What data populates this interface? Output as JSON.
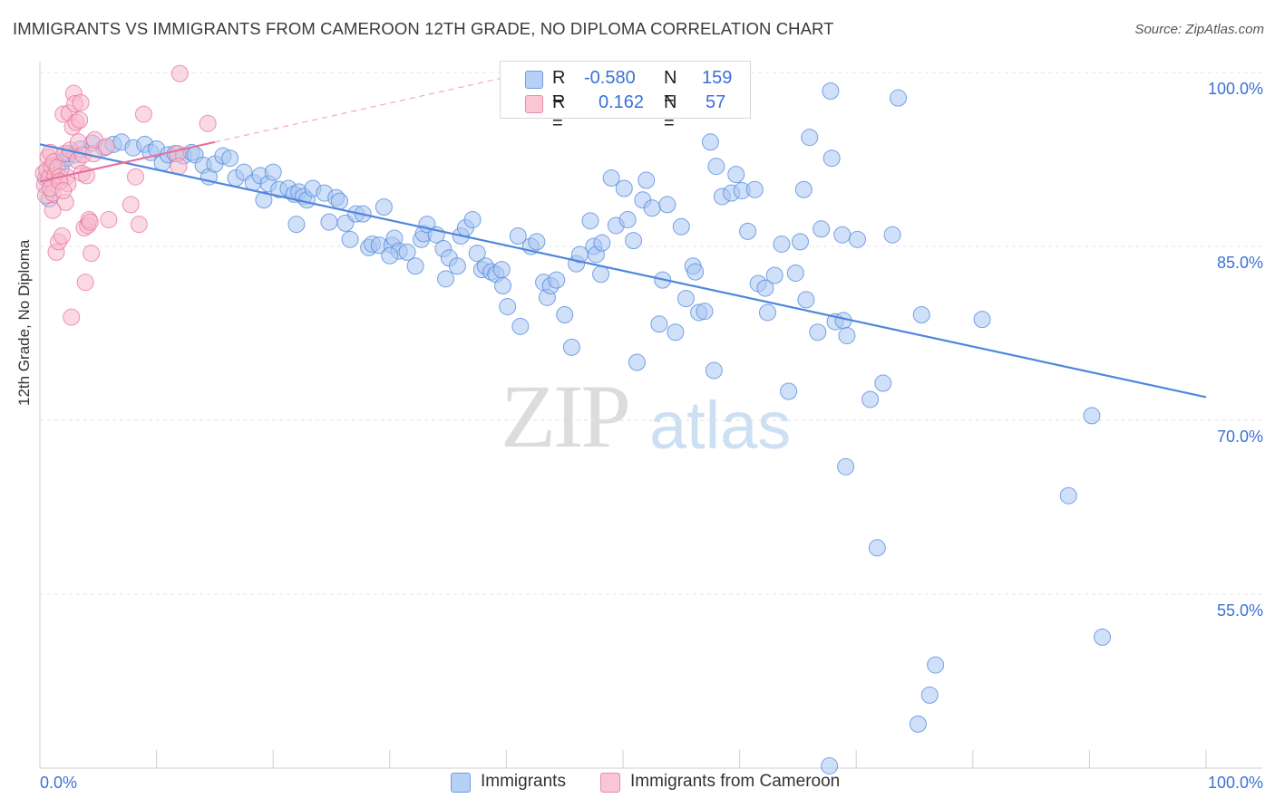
{
  "title": "IMMIGRANTS VS IMMIGRANTS FROM CAMEROON 12TH GRADE, NO DIPLOMA CORRELATION CHART",
  "source": "Source: ZipAtlas.com",
  "watermark": {
    "zip": "ZIP",
    "atlas": "atlas"
  },
  "legend_top": [
    {
      "r_label": "R =",
      "r_value": "-0.580",
      "n_label": "N =",
      "n_value": "159",
      "color": "#a9c7f3"
    },
    {
      "r_label": "R =",
      "r_value": "0.162",
      "n_label": "N =",
      "n_value": "57",
      "color": "#f7b9cc"
    }
  ],
  "legend_bottom": [
    {
      "label": "Immigrants",
      "color": "#a9c7f3"
    },
    {
      "label": "Immigrants from Cameroon",
      "color": "#f7b9cc"
    }
  ],
  "chart_data": {
    "type": "scatter",
    "title": "IMMIGRANTS VS IMMIGRANTS FROM CAMEROON 12TH GRADE, NO DIPLOMA CORRELATION CHART",
    "xlabel": "",
    "ylabel": "12th Grade, No Diploma",
    "xlim": [
      0,
      100
    ],
    "ylim": [
      38,
      101
    ],
    "x_ticks": [
      "0.0%",
      "100.0%"
    ],
    "y_ticks": [
      {
        "value": 100,
        "label": "100.0%"
      },
      {
        "value": 85,
        "label": "85.0%"
      },
      {
        "value": 70,
        "label": "70.0%"
      },
      {
        "value": 55,
        "label": "55.0%"
      }
    ],
    "grid": true,
    "legend_position": "top-center",
    "series": [
      {
        "name": "Immigrants",
        "color": "#4f87dc",
        "fill": "#a9c7f3",
        "trend": {
          "x": [
            0,
            100
          ],
          "y": [
            93.8,
            72.0
          ]
        },
        "points": [
          [
            0.5,
            90.9
          ],
          [
            0.8,
            89.1
          ],
          [
            1.2,
            92.0
          ],
          [
            1.8,
            91.7
          ],
          [
            2.3,
            92.6
          ],
          [
            2.5,
            93.0
          ],
          [
            3.0,
            92.9
          ],
          [
            3.5,
            93.4
          ],
          [
            4.5,
            93.9
          ],
          [
            5.5,
            93.5
          ],
          [
            6.3,
            93.8
          ],
          [
            7.0,
            94.0
          ],
          [
            8.0,
            93.5
          ],
          [
            9.0,
            93.8
          ],
          [
            9.5,
            93.1
          ],
          [
            10.0,
            93.4
          ],
          [
            10.5,
            92.2
          ],
          [
            11.0,
            92.9
          ],
          [
            11.6,
            93.0
          ],
          [
            12.3,
            92.8
          ],
          [
            13.0,
            93.1
          ],
          [
            13.3,
            92.9
          ],
          [
            14.0,
            92.0
          ],
          [
            14.5,
            91.0
          ],
          [
            15.0,
            92.1
          ],
          [
            15.7,
            92.8
          ],
          [
            16.3,
            92.6
          ],
          [
            16.8,
            90.9
          ],
          [
            17.5,
            91.4
          ],
          [
            18.3,
            90.5
          ],
          [
            18.9,
            91.1
          ],
          [
            19.2,
            89.0
          ],
          [
            19.6,
            90.4
          ],
          [
            20.0,
            91.4
          ],
          [
            20.5,
            89.9
          ],
          [
            21.3,
            90.0
          ],
          [
            21.8,
            89.5
          ],
          [
            22.2,
            89.7
          ],
          [
            22.6,
            89.3
          ],
          [
            22.9,
            89.0
          ],
          [
            23.4,
            90.0
          ],
          [
            24.4,
            89.6
          ],
          [
            24.8,
            87.1
          ],
          [
            25.4,
            89.2
          ],
          [
            25.7,
            88.9
          ],
          [
            26.2,
            87.0
          ],
          [
            26.6,
            85.6
          ],
          [
            27.1,
            87.8
          ],
          [
            27.7,
            87.8
          ],
          [
            28.2,
            84.9
          ],
          [
            28.5,
            85.2
          ],
          [
            29.1,
            85.1
          ],
          [
            29.5,
            88.4
          ],
          [
            30.2,
            85.1
          ],
          [
            30.4,
            85.7
          ],
          [
            30.8,
            84.6
          ],
          [
            31.5,
            84.5
          ],
          [
            32.2,
            83.3
          ],
          [
            32.7,
            85.6
          ],
          [
            32.9,
            86.1
          ],
          [
            33.2,
            86.9
          ],
          [
            34.0,
            86.0
          ],
          [
            34.6,
            84.8
          ],
          [
            35.1,
            84.0
          ],
          [
            35.8,
            83.3
          ],
          [
            36.1,
            85.9
          ],
          [
            36.5,
            86.6
          ],
          [
            37.1,
            87.3
          ],
          [
            37.9,
            83.0
          ],
          [
            38.2,
            83.3
          ],
          [
            38.7,
            82.8
          ],
          [
            39.1,
            82.6
          ],
          [
            39.6,
            83.0
          ],
          [
            39.7,
            81.6
          ],
          [
            40.1,
            79.8
          ],
          [
            41.0,
            85.9
          ],
          [
            41.2,
            78.1
          ],
          [
            42.1,
            85.0
          ],
          [
            42.6,
            85.4
          ],
          [
            43.2,
            81.9
          ],
          [
            43.5,
            80.6
          ],
          [
            43.8,
            81.6
          ],
          [
            44.3,
            82.1
          ],
          [
            45.0,
            79.1
          ],
          [
            45.6,
            76.3
          ],
          [
            46.0,
            83.5
          ],
          [
            46.3,
            84.3
          ],
          [
            47.2,
            87.2
          ],
          [
            47.5,
            85.0
          ],
          [
            47.7,
            84.3
          ],
          [
            48.1,
            82.6
          ],
          [
            49.0,
            90.9
          ],
          [
            49.4,
            86.8
          ],
          [
            50.1,
            90.0
          ],
          [
            50.4,
            87.3
          ],
          [
            50.9,
            85.5
          ],
          [
            51.2,
            75.0
          ],
          [
            51.7,
            89.0
          ],
          [
            52.0,
            90.7
          ],
          [
            52.5,
            88.3
          ],
          [
            53.1,
            78.3
          ],
          [
            53.4,
            82.1
          ],
          [
            53.8,
            88.6
          ],
          [
            54.5,
            77.6
          ],
          [
            55.0,
            86.7
          ],
          [
            56.0,
            83.3
          ],
          [
            56.2,
            82.8
          ],
          [
            56.5,
            79.3
          ],
          [
            57.0,
            79.4
          ],
          [
            57.5,
            94.0
          ],
          [
            57.8,
            74.3
          ],
          [
            58.0,
            91.9
          ],
          [
            58.5,
            89.3
          ],
          [
            59.3,
            89.6
          ],
          [
            59.7,
            91.2
          ],
          [
            60.2,
            89.8
          ],
          [
            60.7,
            86.3
          ],
          [
            61.3,
            89.9
          ],
          [
            61.6,
            81.8
          ],
          [
            62.2,
            81.4
          ],
          [
            62.4,
            79.3
          ],
          [
            63.0,
            82.5
          ],
          [
            63.6,
            85.2
          ],
          [
            65.2,
            85.4
          ],
          [
            65.5,
            89.9
          ],
          [
            65.7,
            80.4
          ],
          [
            66.0,
            94.4
          ],
          [
            66.7,
            77.6
          ],
          [
            67.0,
            86.5
          ],
          [
            67.9,
            92.6
          ],
          [
            68.2,
            78.5
          ],
          [
            68.8,
            86.0
          ],
          [
            68.9,
            78.6
          ],
          [
            69.2,
            77.3
          ],
          [
            70.1,
            85.6
          ],
          [
            71.2,
            71.8
          ],
          [
            71.8,
            59.0
          ],
          [
            72.3,
            73.2
          ],
          [
            73.1,
            86.0
          ],
          [
            75.6,
            79.1
          ],
          [
            80.8,
            78.7
          ],
          [
            88.2,
            63.5
          ],
          [
            91.1,
            51.3
          ],
          [
            90.2,
            70.4
          ],
          [
            76.8,
            48.9
          ],
          [
            76.3,
            46.3
          ],
          [
            67.7,
            40.2
          ],
          [
            75.3,
            43.8
          ],
          [
            67.8,
            98.4
          ],
          [
            73.6,
            97.8
          ],
          [
            64.8,
            82.7
          ],
          [
            64.2,
            72.5
          ],
          [
            55.4,
            80.5
          ],
          [
            48.2,
            85.3
          ],
          [
            69.1,
            66.0
          ],
          [
            37.5,
            84.4
          ],
          [
            34.8,
            82.2
          ],
          [
            22.0,
            86.9
          ],
          [
            30.0,
            84.2
          ]
        ]
      },
      {
        "name": "Immigrants from Cameroon",
        "color": "#e8729b",
        "fill": "#f7b9cc",
        "trend": {
          "x": [
            0,
            15
          ],
          "y": [
            90.6,
            94.0
          ]
        },
        "trend_extension": {
          "x": [
            15,
            40
          ],
          "y": [
            94.0,
            99.6
          ]
        },
        "points": [
          [
            0.3,
            91.3
          ],
          [
            0.4,
            90.3
          ],
          [
            0.5,
            89.4
          ],
          [
            0.6,
            91.6
          ],
          [
            0.7,
            92.7
          ],
          [
            0.8,
            90.9
          ],
          [
            0.9,
            93.1
          ],
          [
            1.0,
            91.9
          ],
          [
            1.1,
            89.6
          ],
          [
            1.2,
            92.3
          ],
          [
            1.3,
            91.1
          ],
          [
            1.4,
            84.5
          ],
          [
            1.5,
            91.8
          ],
          [
            1.6,
            85.4
          ],
          [
            1.7,
            91.0
          ],
          [
            1.9,
            85.9
          ],
          [
            2.0,
            96.4
          ],
          [
            2.1,
            93.0
          ],
          [
            2.2,
            88.8
          ],
          [
            2.3,
            91.0
          ],
          [
            2.4,
            90.4
          ],
          [
            2.5,
            96.5
          ],
          [
            2.6,
            93.3
          ],
          [
            2.7,
            78.9
          ],
          [
            2.8,
            95.3
          ],
          [
            2.9,
            98.2
          ],
          [
            3.0,
            97.3
          ],
          [
            3.1,
            95.7
          ],
          [
            3.2,
            92.4
          ],
          [
            3.3,
            94.0
          ],
          [
            3.4,
            95.9
          ],
          [
            3.5,
            97.4
          ],
          [
            3.6,
            91.3
          ],
          [
            3.7,
            92.9
          ],
          [
            3.8,
            86.6
          ],
          [
            3.9,
            81.9
          ],
          [
            4.0,
            91.1
          ],
          [
            4.1,
            86.8
          ],
          [
            4.2,
            87.3
          ],
          [
            4.3,
            87.1
          ],
          [
            4.4,
            84.4
          ],
          [
            4.6,
            93.0
          ],
          [
            4.7,
            94.2
          ],
          [
            5.7,
            93.6
          ],
          [
            5.9,
            87.3
          ],
          [
            7.8,
            88.6
          ],
          [
            8.2,
            91.0
          ],
          [
            8.5,
            86.9
          ],
          [
            8.9,
            96.4
          ],
          [
            11.8,
            93.0
          ],
          [
            11.9,
            91.9
          ],
          [
            12.0,
            99.9
          ],
          [
            14.4,
            95.6
          ],
          [
            0.9,
            90.0
          ],
          [
            1.7,
            90.6
          ],
          [
            1.1,
            88.1
          ],
          [
            2.0,
            89.8
          ]
        ]
      }
    ]
  }
}
